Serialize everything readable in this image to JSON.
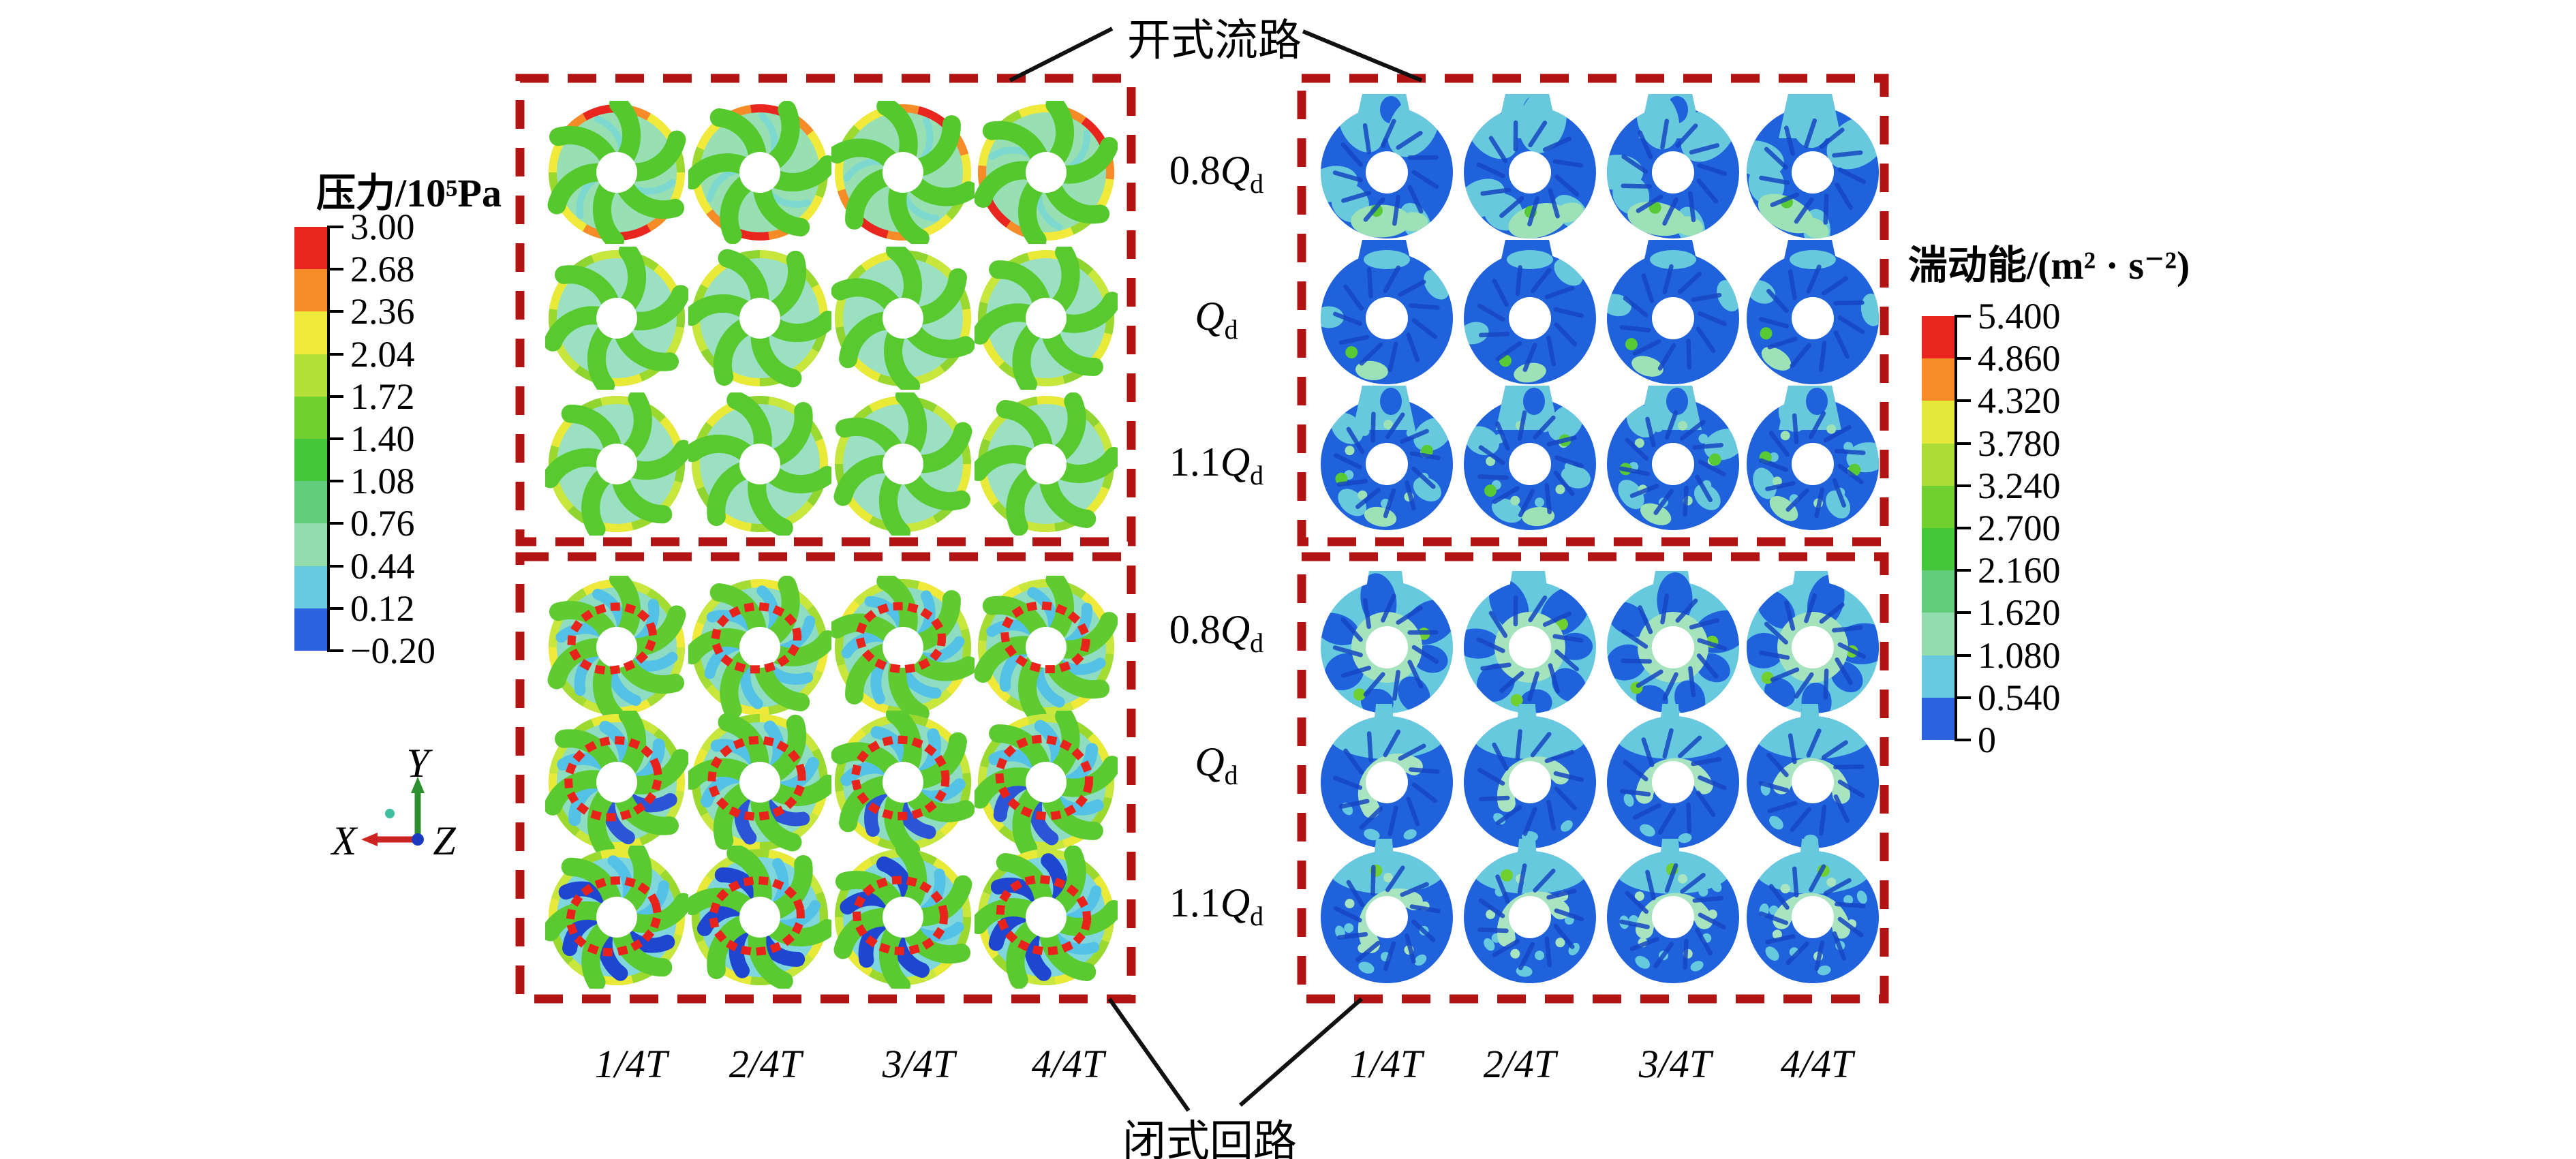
{
  "figure": {
    "top_annotation": "开式流路",
    "bottom_annotation": "闭式回路",
    "flow_labels": [
      {
        "pre": "0.8",
        "sym": "Q",
        "sub": "d"
      },
      {
        "pre": "",
        "sym": "Q",
        "sub": "d"
      },
      {
        "pre": "1.1",
        "sym": "Q",
        "sub": "d"
      }
    ],
    "time_labels": [
      {
        "pre": "1/4",
        "sym": "T"
      },
      {
        "pre": "2/4",
        "sym": "T"
      },
      {
        "pre": "3/4",
        "sym": "T"
      },
      {
        "pre": "4/4",
        "sym": "T"
      }
    ],
    "axes": {
      "x": "X",
      "y": "Y",
      "z": "Z"
    }
  },
  "pressure_legend": {
    "title": "压力/10⁵Pa",
    "ticks": [
      "3.00",
      "2.68",
      "2.36",
      "2.04",
      "1.72",
      "1.40",
      "1.08",
      "0.76",
      "0.44",
      "0.12",
      "−0.20"
    ],
    "colors": [
      "#e8251f",
      "#f68b28",
      "#efe93a",
      "#b5e038",
      "#6fd02f",
      "#45c73a",
      "#62cd7d",
      "#93dcae",
      "#68c9e0",
      "#2b62dd"
    ]
  },
  "tke_legend": {
    "title": "湍动能/(m² · s⁻²)",
    "ticks": [
      "5.400",
      "4.860",
      "4.320",
      "3.780",
      "3.240",
      "2.700",
      "2.160",
      "1.620",
      "1.080",
      "0.540",
      "0"
    ],
    "colors": [
      "#e8251f",
      "#f68b28",
      "#e5e83a",
      "#abdd36",
      "#6fd02f",
      "#45c73a",
      "#62cd7d",
      "#93dcae",
      "#68c9e0",
      "#2b62dd"
    ]
  },
  "palette": {
    "box_dash_red": "#b21414",
    "dot_red": "#e8231c",
    "connector_black": "#111111",
    "axis_x_red": "#cc2222",
    "axis_y_green": "#2d8f2d",
    "axis_z_blue": "#1a3bbf",
    "axis_dot_teal": "#3fbf9f"
  },
  "pressure_styles": {
    "open": [
      {
        "rim": [
          "#f2ea3a",
          "#f68b28",
          "#e8251f",
          "#f68b28",
          "#f2ea3a",
          "#9bd92f"
        ],
        "blade": "#55c82e",
        "passage": "#98e0b4",
        "streaks": [
          {
            "color": "#7dd8cf",
            "w": 10,
            "slots": [
              0,
              2,
              4
            ]
          }
        ]
      },
      {
        "rim": [
          "#c9e63c",
          "#9bd92f",
          "#e9ea38",
          "#8fd42f"
        ],
        "blade": "#58c92f",
        "passage": "#9ce0c4",
        "streaks": []
      },
      {
        "rim": [
          "#c9e63c",
          "#9bd92f",
          "#e9ea38",
          "#8fd42f"
        ],
        "blade": "#58c92f",
        "passage": "#9ce0c4",
        "streaks": []
      }
    ],
    "closed": [
      {
        "rim": [
          "#c9e63c",
          "#a5dc33",
          "#f0e93a"
        ],
        "blade": "#60cb31",
        "passage": "#8edcc2",
        "streaks": [
          {
            "color": "#54c2e6",
            "w": 16,
            "slots": [
              0,
              1,
              2,
              3,
              4,
              5
            ]
          }
        ]
      },
      {
        "rim": [
          "#c9e63c",
          "#9bd92f",
          "#e9ea38"
        ],
        "blade": "#5bca30",
        "passage": "#8edcc2",
        "streaks": [
          {
            "color": "#54c2e6",
            "w": 18,
            "slots": [
              0,
              1,
              2,
              3,
              4,
              5
            ]
          },
          {
            "color": "#2b55d6",
            "w": 20,
            "slots": [
              0,
              1
            ]
          }
        ]
      },
      {
        "rim": [
          "#c9e63c",
          "#9bd92f",
          "#e9ea38"
        ],
        "blade": "#5bca30",
        "passage": "#7fd6dc",
        "streaks": [
          {
            "color": "#54c2e6",
            "w": 16,
            "slots": [
              0,
              1,
              2,
              3,
              4,
              5
            ]
          },
          {
            "color": "#1f46d0",
            "w": 22,
            "slots": [
              0,
              1,
              2,
              3
            ]
          }
        ]
      }
    ]
  },
  "tke_styles": {
    "open": [
      {
        "key": "o0",
        "body": "#1f62dc",
        "patch": "#68c9dd",
        "patch2": "#9de1b6",
        "green": "#57ca35",
        "stub": "wide",
        "stubFill": "#68c9dd"
      },
      {
        "key": "o1",
        "body": "#1f62dc",
        "patch": "#68c9dd",
        "patch2": "#9de1b6",
        "green": "#57ca35",
        "stub": "wide",
        "stubFill": "#1f62dc"
      },
      {
        "key": "o2",
        "body": "#1f62dc",
        "patch": "#68c9dd",
        "patch2": "#9de1b6",
        "green": "#57ca35",
        "stub": "wide",
        "stubFill": "#68c9dd"
      }
    ],
    "closed": [
      {
        "key": "c0",
        "body": "#66c9dd",
        "patch": "#1f62dc",
        "patch2": "#a5e3bc",
        "green": "#6fd02f",
        "stub": "mid",
        "stubFill": "#66c9dd"
      },
      {
        "key": "c1",
        "body": "#1f62dc",
        "patch": "#66c9dd",
        "patch2": "#a8e4c0",
        "green": "#6fd02f",
        "stub": "narrow",
        "stubFill": "#66c9dd"
      },
      {
        "key": "c2",
        "body": "#1f62dc",
        "patch": "#66c9dd",
        "patch2": "#a8e4c0",
        "green": "#6fd02f",
        "stub": "narrow",
        "stubFill": "#66c9dd"
      }
    ]
  }
}
